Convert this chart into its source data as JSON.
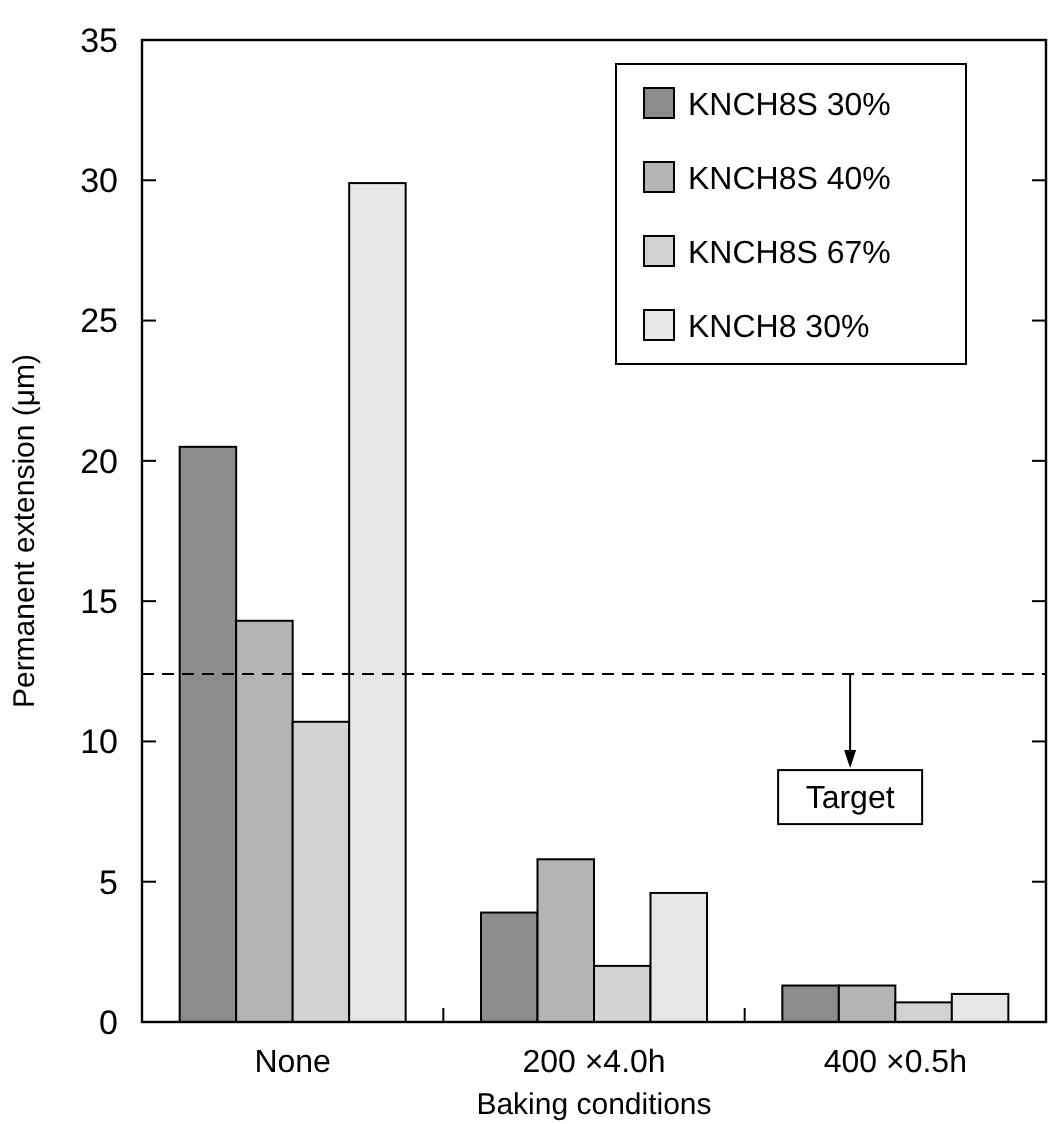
{
  "chart_data": {
    "type": "bar",
    "xlabel": "Baking conditions",
    "ylabel": "Permanent extension (μm)",
    "categories": [
      "None",
      "200 ×4.0h",
      "400 ×0.5h"
    ],
    "series": [
      {
        "name": "KNCH8S 30%",
        "color": "#8c8c8c",
        "values": [
          20.5,
          3.9,
          1.3
        ]
      },
      {
        "name": "KNCH8S 40%",
        "color": "#b4b4b4",
        "values": [
          14.3,
          5.8,
          1.3
        ]
      },
      {
        "name": "KNCH8S 67%",
        "color": "#d2d2d2",
        "values": [
          10.7,
          2.0,
          0.7
        ]
      },
      {
        "name": "KNCH8 30%",
        "color": "#e6e6e6",
        "values": [
          29.9,
          4.6,
          1.0
        ]
      }
    ],
    "ylim": [
      0,
      35
    ],
    "yticks": [
      0,
      5,
      10,
      15,
      20,
      25,
      30,
      35
    ],
    "grid": false,
    "legend": "top right",
    "ref_lines": [
      {
        "axis": "y",
        "value": 12.4,
        "label": "Target",
        "line_style": "dashed"
      }
    ]
  }
}
